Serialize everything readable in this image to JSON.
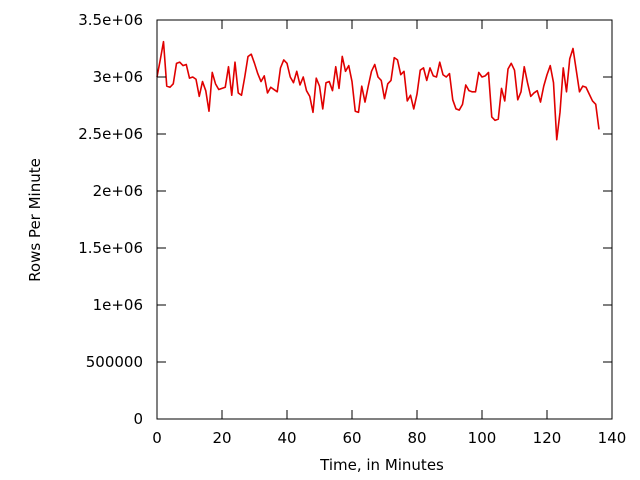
{
  "chart_data": {
    "type": "line",
    "title": "",
    "xlabel": "Time, in Minutes",
    "ylabel": "Rows Per Minute",
    "xlim": [
      0,
      140
    ],
    "ylim": [
      0,
      3500000
    ],
    "grid": false,
    "legend": "none",
    "x_ticks": [
      {
        "value": 0,
        "label": "0"
      },
      {
        "value": 20,
        "label": "20"
      },
      {
        "value": 40,
        "label": "40"
      },
      {
        "value": 60,
        "label": "60"
      },
      {
        "value": 80,
        "label": "80"
      },
      {
        "value": 100,
        "label": "100"
      },
      {
        "value": 120,
        "label": "120"
      },
      {
        "value": 140,
        "label": "140"
      }
    ],
    "y_ticks": [
      {
        "value": 0,
        "label": "0"
      },
      {
        "value": 500000,
        "label": "500000"
      },
      {
        "value": 1000000,
        "label": "1e+06"
      },
      {
        "value": 1500000,
        "label": "1.5e+06"
      },
      {
        "value": 2000000,
        "label": "2e+06"
      },
      {
        "value": 2500000,
        "label": "2.5e+06"
      },
      {
        "value": 3000000,
        "label": "3e+06"
      },
      {
        "value": 3500000,
        "label": "3.5e+06"
      }
    ],
    "series": [
      {
        "color": "#e00000",
        "points": [
          [
            0,
            3000000
          ],
          [
            1,
            3150000
          ],
          [
            2,
            3310000
          ],
          [
            3,
            2920000
          ],
          [
            4,
            2910000
          ],
          [
            5,
            2940000
          ],
          [
            6,
            3120000
          ],
          [
            7,
            3130000
          ],
          [
            8,
            3100000
          ],
          [
            9,
            3110000
          ],
          [
            10,
            2990000
          ],
          [
            11,
            3000000
          ],
          [
            12,
            2980000
          ],
          [
            13,
            2830000
          ],
          [
            14,
            2960000
          ],
          [
            15,
            2880000
          ],
          [
            16,
            2700000
          ],
          [
            17,
            3040000
          ],
          [
            18,
            2940000
          ],
          [
            19,
            2890000
          ],
          [
            20,
            2900000
          ],
          [
            21,
            2910000
          ],
          [
            22,
            3090000
          ],
          [
            23,
            2840000
          ],
          [
            24,
            3130000
          ],
          [
            25,
            2860000
          ],
          [
            26,
            2840000
          ],
          [
            27,
            3000000
          ],
          [
            28,
            3180000
          ],
          [
            29,
            3200000
          ],
          [
            30,
            3120000
          ],
          [
            31,
            3030000
          ],
          [
            32,
            2960000
          ],
          [
            33,
            3010000
          ],
          [
            34,
            2860000
          ],
          [
            35,
            2910000
          ],
          [
            36,
            2890000
          ],
          [
            37,
            2870000
          ],
          [
            38,
            3080000
          ],
          [
            39,
            3150000
          ],
          [
            40,
            3120000
          ],
          [
            41,
            3000000
          ],
          [
            42,
            2950000
          ],
          [
            43,
            3050000
          ],
          [
            44,
            2930000
          ],
          [
            45,
            3000000
          ],
          [
            46,
            2880000
          ],
          [
            47,
            2830000
          ],
          [
            48,
            2690000
          ],
          [
            49,
            2990000
          ],
          [
            50,
            2920000
          ],
          [
            51,
            2720000
          ],
          [
            52,
            2950000
          ],
          [
            53,
            2960000
          ],
          [
            54,
            2880000
          ],
          [
            55,
            3090000
          ],
          [
            56,
            2900000
          ],
          [
            57,
            3180000
          ],
          [
            58,
            3050000
          ],
          [
            59,
            3100000
          ],
          [
            60,
            2960000
          ],
          [
            61,
            2700000
          ],
          [
            62,
            2690000
          ],
          [
            63,
            2920000
          ],
          [
            64,
            2780000
          ],
          [
            65,
            2920000
          ],
          [
            66,
            3050000
          ],
          [
            67,
            3110000
          ],
          [
            68,
            3000000
          ],
          [
            69,
            2970000
          ],
          [
            70,
            2810000
          ],
          [
            71,
            2940000
          ],
          [
            72,
            2970000
          ],
          [
            73,
            3170000
          ],
          [
            74,
            3150000
          ],
          [
            75,
            3020000
          ],
          [
            76,
            3050000
          ],
          [
            77,
            2790000
          ],
          [
            78,
            2840000
          ],
          [
            79,
            2720000
          ],
          [
            80,
            2850000
          ],
          [
            81,
            3060000
          ],
          [
            82,
            3080000
          ],
          [
            83,
            2970000
          ],
          [
            84,
            3080000
          ],
          [
            85,
            3010000
          ],
          [
            86,
            3000000
          ],
          [
            87,
            3130000
          ],
          [
            88,
            3020000
          ],
          [
            89,
            3000000
          ],
          [
            90,
            3030000
          ],
          [
            91,
            2800000
          ],
          [
            92,
            2720000
          ],
          [
            93,
            2710000
          ],
          [
            94,
            2760000
          ],
          [
            95,
            2930000
          ],
          [
            96,
            2880000
          ],
          [
            97,
            2870000
          ],
          [
            98,
            2870000
          ],
          [
            99,
            3040000
          ],
          [
            100,
            3000000
          ],
          [
            101,
            3010000
          ],
          [
            102,
            3040000
          ],
          [
            103,
            2650000
          ],
          [
            104,
            2620000
          ],
          [
            105,
            2630000
          ],
          [
            106,
            2900000
          ],
          [
            107,
            2790000
          ],
          [
            108,
            3070000
          ],
          [
            109,
            3120000
          ],
          [
            110,
            3060000
          ],
          [
            111,
            2800000
          ],
          [
            112,
            2870000
          ],
          [
            113,
            3090000
          ],
          [
            114,
            2950000
          ],
          [
            115,
            2830000
          ],
          [
            116,
            2860000
          ],
          [
            117,
            2880000
          ],
          [
            118,
            2780000
          ],
          [
            119,
            2920000
          ],
          [
            120,
            3020000
          ],
          [
            121,
            3100000
          ],
          [
            122,
            2950000
          ],
          [
            123,
            2450000
          ],
          [
            124,
            2690000
          ],
          [
            125,
            3080000
          ],
          [
            126,
            2870000
          ],
          [
            127,
            3160000
          ],
          [
            128,
            3250000
          ],
          [
            129,
            3060000
          ],
          [
            130,
            2870000
          ],
          [
            131,
            2920000
          ],
          [
            132,
            2910000
          ],
          [
            133,
            2850000
          ],
          [
            134,
            2790000
          ],
          [
            135,
            2760000
          ],
          [
            136,
            2540000
          ]
        ]
      }
    ]
  }
}
